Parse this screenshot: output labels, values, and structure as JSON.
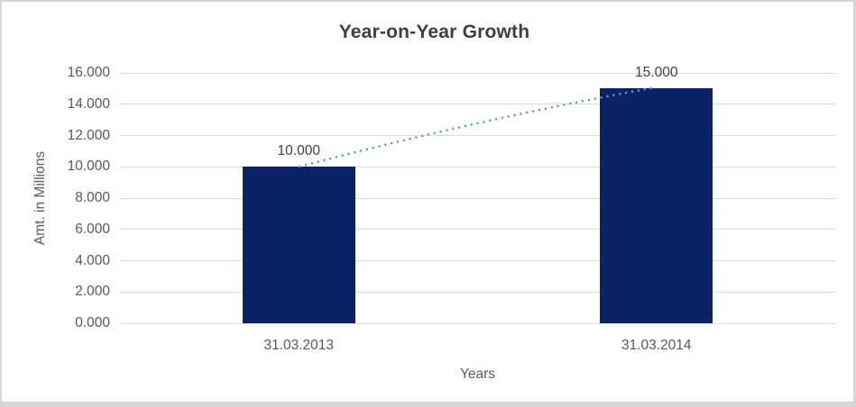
{
  "chart_data": {
    "type": "bar",
    "title": "Year-on-Year Growth",
    "xlabel": "Years",
    "ylabel": "Amt. in Millions",
    "categories": [
      "31.03.2013",
      "31.03.2014"
    ],
    "values": [
      10,
      15
    ],
    "value_labels": [
      "10.000",
      "15.000"
    ],
    "y_ticks": [
      "0.000",
      "2.000",
      "4.000",
      "6.000",
      "8.000",
      "10.000",
      "12.000",
      "14.000",
      "16.000"
    ],
    "ylim": [
      0,
      16
    ],
    "grid": "horizontal",
    "legend": "none",
    "trendline": {
      "style": "dotted",
      "from_value": 10,
      "to_value": 15
    },
    "colors": {
      "bar": "#0b2265",
      "trendline": "#5b9bd5",
      "gridline": "#d9d9d9",
      "title_text": "#3f3f3f",
      "axis_text": "#595959",
      "label_text": "#404040",
      "frame_border": "#d6d6d6",
      "background": "#ffffff"
    }
  }
}
